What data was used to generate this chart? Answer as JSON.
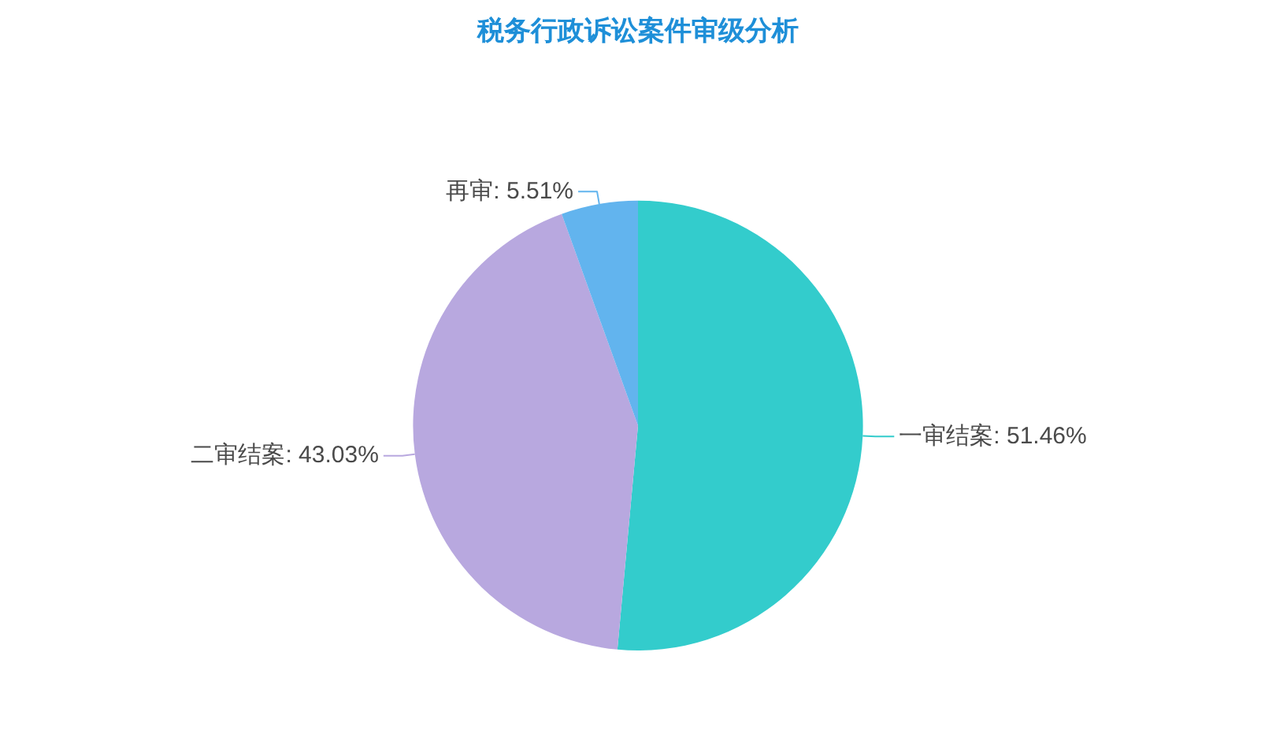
{
  "chart_data": {
    "type": "pie",
    "title": "税务行政诉讼案件审级分析",
    "categories": [
      "一审结案",
      "二审结案",
      "再审"
    ],
    "values": [
      51.46,
      43.03,
      5.51
    ],
    "colors": [
      "#33cccc",
      "#b8a8df",
      "#62b4ee"
    ],
    "value_labels": [
      "51.46%",
      "43.03%",
      "5.51%"
    ]
  }
}
